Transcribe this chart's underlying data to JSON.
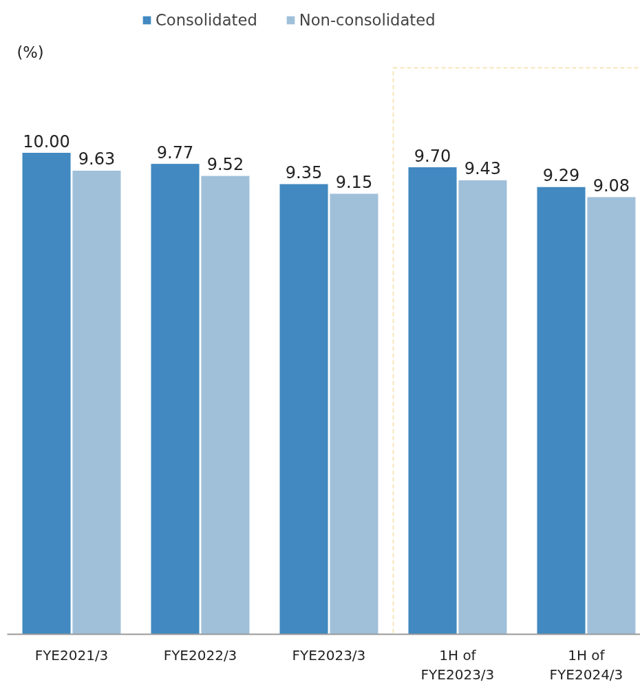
{
  "chart_data": {
    "type": "bar",
    "annotations": [
      "(%)"
    ],
    "categories": [
      "FYE2021/3",
      "FYE2022/3",
      "FYE2023/3",
      "1H of\nFYE2023/3",
      "1H of\nFYE2024/3"
    ],
    "series": [
      {
        "name": "Consolidated",
        "color": "#4189c0",
        "values": [
          10.0,
          9.77,
          9.35,
          9.7,
          9.29
        ],
        "value_labels": [
          "10.00",
          "9.77",
          "9.35",
          "9.70",
          "9.29"
        ]
      },
      {
        "name": "Non-consolidated",
        "color": "#a0c0da",
        "values": [
          9.63,
          9.52,
          9.15,
          9.43,
          9.08
        ],
        "value_labels": [
          "9.63",
          "9.52",
          "9.15",
          "9.43",
          "9.08"
        ]
      }
    ],
    "tick_labels": "x",
    "legend": "top"
  }
}
